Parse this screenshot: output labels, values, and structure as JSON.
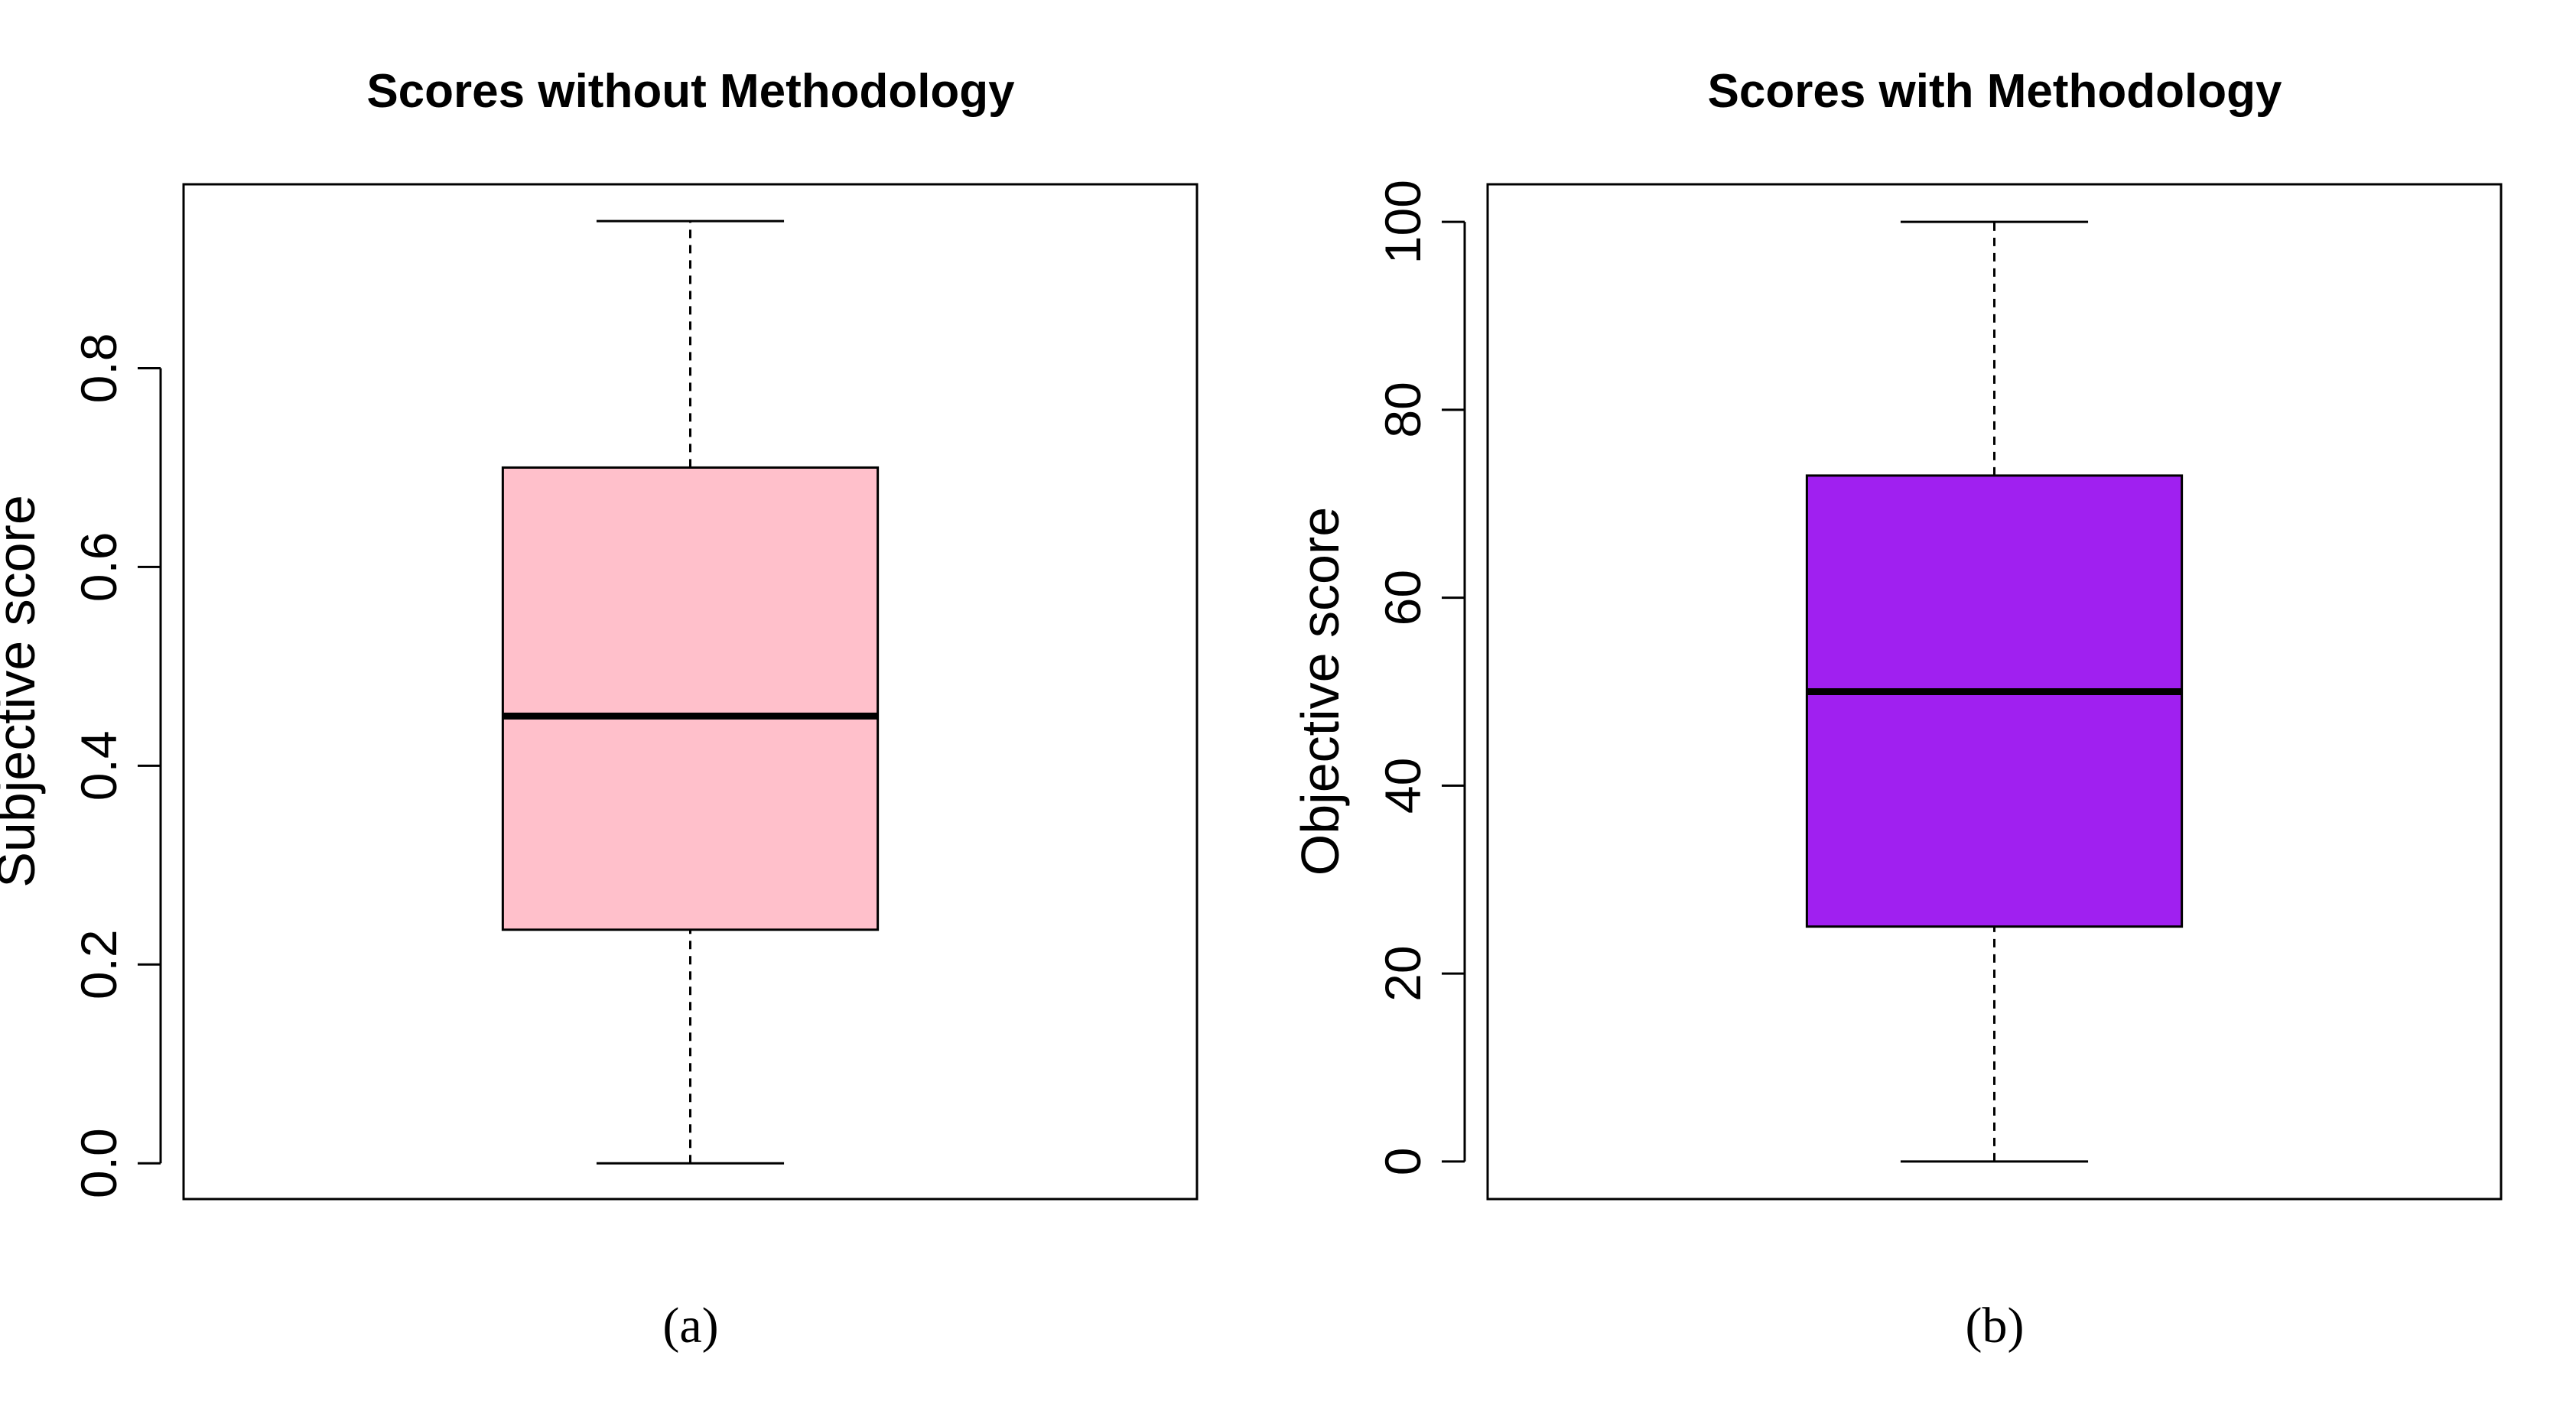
{
  "chart_data": [
    {
      "type": "box",
      "title": "Scores without Methodology",
      "ylabel": "Subjective score",
      "xlabel": "",
      "caption": "(a)",
      "ylim": [
        -0.036,
        0.985
      ],
      "yticks": [
        0.0,
        0.2,
        0.4,
        0.6,
        0.8
      ],
      "ytick_labels": [
        "0.0",
        "0.2",
        "0.4",
        "0.6",
        "0.8"
      ],
      "box_color": "#ffc0cb",
      "stats": {
        "min": 0.0,
        "q1": 0.235,
        "median": 0.45,
        "q3": 0.7,
        "max": 0.948
      },
      "grid": false
    },
    {
      "type": "box",
      "title": "Scores with Methodology",
      "ylabel": "Objective score",
      "xlabel": "",
      "caption": "(b)",
      "ylim": [
        -4,
        104
      ],
      "yticks": [
        0,
        20,
        40,
        60,
        80,
        100
      ],
      "ytick_labels": [
        "0",
        "20",
        "40",
        "60",
        "80",
        "100"
      ],
      "box_color": "#a020f0",
      "stats": {
        "min": 0,
        "q1": 25,
        "median": 50,
        "q3": 73,
        "max": 100
      },
      "grid": false
    }
  ]
}
